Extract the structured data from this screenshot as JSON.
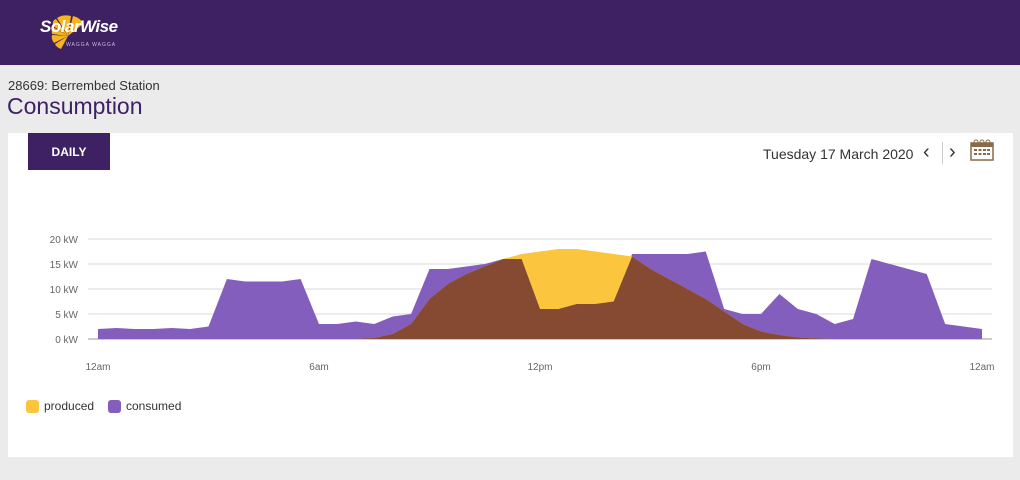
{
  "header": {
    "brand": "SolarWise",
    "brand_sub": "WAGGA WAGGA"
  },
  "page": {
    "station": "28669: Berrembed Station",
    "title": "Consumption"
  },
  "toolbar": {
    "period_label": "DAILY",
    "date": "Tuesday 17 March 2020",
    "prev": "‹",
    "next": "›"
  },
  "chart_data": {
    "type": "area",
    "title": "",
    "ylabel": "kW",
    "ylim": [
      0,
      20
    ],
    "y_ticks": [
      "0 kW",
      "5 kW",
      "10 kW",
      "15 kW",
      "20 kW"
    ],
    "x_ticks": [
      "12am",
      "6am",
      "12pm",
      "6pm",
      "12am"
    ],
    "x_hours": [
      0,
      0.5,
      1,
      1.5,
      2,
      2.5,
      3,
      3.5,
      4,
      4.5,
      5,
      5.5,
      6,
      6.5,
      7,
      7.5,
      8,
      8.5,
      9,
      9.5,
      10,
      10.5,
      11,
      11.5,
      12,
      12.5,
      13,
      13.5,
      14,
      14.5,
      15,
      15.5,
      16,
      16.5,
      17,
      17.5,
      18,
      18.5,
      19,
      19.5,
      20,
      20.5,
      21,
      21.5,
      22,
      22.5,
      23,
      23.5,
      24
    ],
    "series": [
      {
        "name": "produced",
        "color": "#fbc63e",
        "values": [
          0,
          0,
          0,
          0,
          0,
          0,
          0,
          0,
          0,
          0,
          0,
          0,
          0,
          0,
          0,
          0.2,
          1,
          3,
          8,
          11,
          13,
          14.5,
          16,
          17,
          17.5,
          18,
          18,
          17.5,
          17,
          16.5,
          14,
          12,
          10,
          8,
          5.5,
          3,
          1.5,
          0.8,
          0.3,
          0.1,
          0,
          0,
          0,
          0,
          0,
          0,
          0,
          0,
          0
        ]
      },
      {
        "name": "consumed",
        "color": "#845ebd",
        "values": [
          2,
          2.2,
          2,
          2,
          2.2,
          2,
          2.5,
          12,
          11.5,
          11.5,
          11.5,
          12,
          3,
          3,
          3.5,
          3,
          4.5,
          5,
          14,
          14,
          14.5,
          15,
          16,
          16,
          6,
          6,
          7,
          7,
          7.5,
          17,
          17,
          17,
          17,
          17.5,
          6,
          5,
          5,
          9,
          6,
          5,
          3,
          4,
          16,
          15,
          14,
          13,
          3,
          2.5,
          2
        ]
      }
    ],
    "overlap_color": "#864a33",
    "legend": "bottom-left"
  },
  "colors": {
    "brand": "#3d2163",
    "accent": "#fbc63e"
  }
}
